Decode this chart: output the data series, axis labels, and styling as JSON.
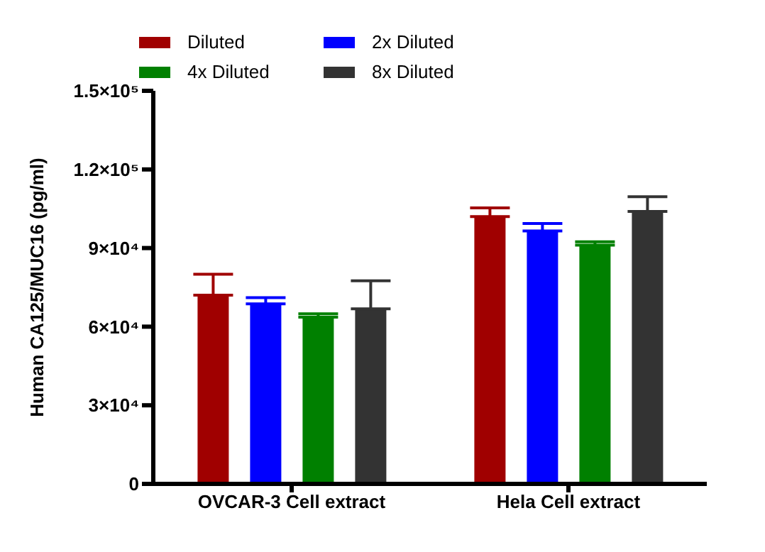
{
  "chart_data": {
    "type": "bar",
    "ylabel": "Human CA125/MUC16 (pg/ml)",
    "categories": [
      "OVCAR-3 Cell extract",
      "Hela Cell extract"
    ],
    "series": [
      {
        "name": "Diluted",
        "color": "#a00000",
        "values": [
          72000,
          102000
        ],
        "errors": [
          [
            72000,
            80000
          ],
          [
            102000,
            105300
          ]
        ]
      },
      {
        "name": "2x Diluted",
        "color": "#0000ff",
        "values": [
          68700,
          96500
        ],
        "errors": [
          [
            68700,
            71100
          ],
          [
            96500,
            99400
          ]
        ]
      },
      {
        "name": "4x Diluted",
        "color": "#008000",
        "values": [
          63600,
          91100
        ],
        "errors": [
          [
            63600,
            64900
          ],
          [
            91100,
            92400
          ]
        ]
      },
      {
        "name": "8x Diluted",
        "color": "#333333",
        "values": [
          66800,
          104000
        ],
        "errors": [
          [
            66800,
            77500
          ],
          [
            104000,
            109600
          ]
        ]
      }
    ],
    "ylim": [
      0,
      150000
    ],
    "yticks": [
      0,
      {
        "value": 30000,
        "label": "3×10⁴"
      },
      {
        "value": 60000,
        "label": "6×10⁴"
      },
      {
        "value": 90000,
        "label": "9×10⁴"
      },
      {
        "value": 120000,
        "label": "1.2×10⁵"
      },
      {
        "value": 150000,
        "label": "1.5×10⁵"
      }
    ],
    "grid": false,
    "legend": "top"
  }
}
